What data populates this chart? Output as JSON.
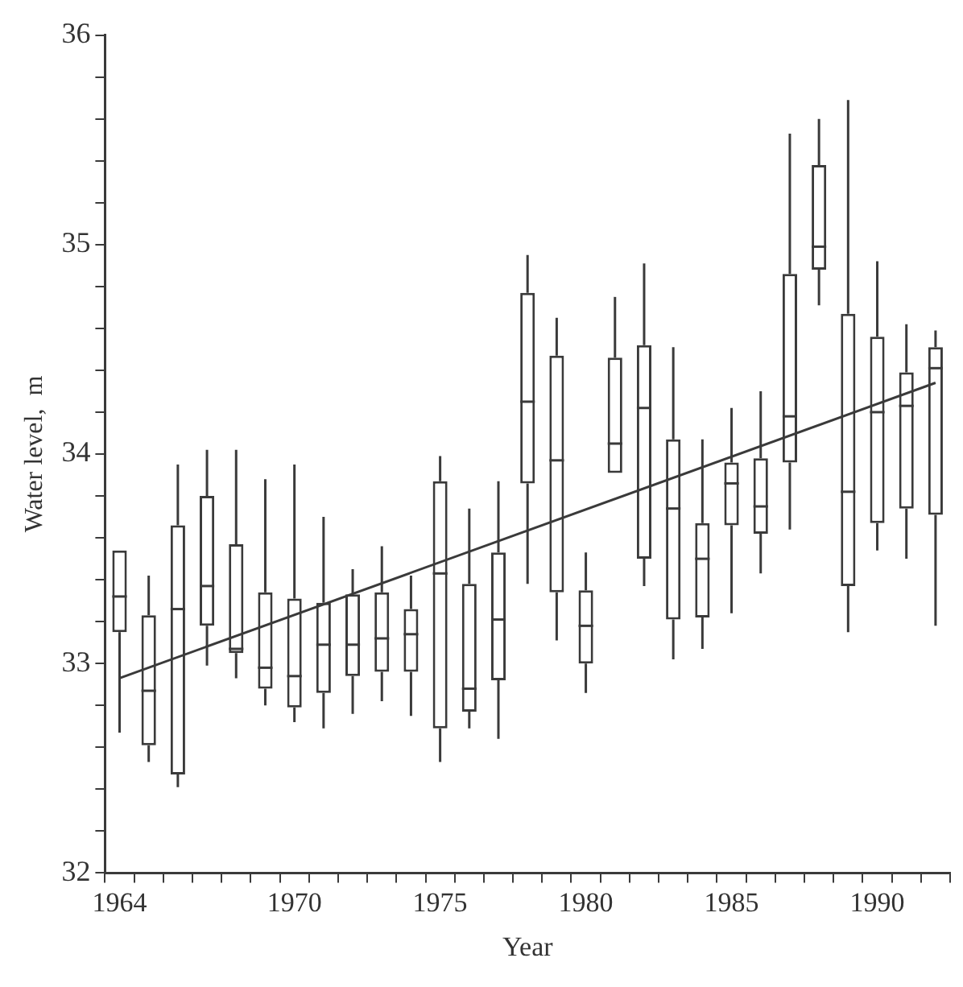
{
  "chart_data": {
    "type": "box",
    "xlabel": "Year",
    "ylabel": "Water level,  m",
    "color": "#3a3a3a",
    "grid": false,
    "legend": false,
    "categories": [
      "1964",
      null,
      null,
      null,
      null,
      null,
      "1970",
      null,
      null,
      null,
      null,
      "1975",
      null,
      null,
      null,
      null,
      "1980",
      null,
      null,
      null,
      null,
      "1985",
      null,
      null,
      null,
      null,
      "1990",
      null,
      null
    ],
    "ylim": [
      32,
      36
    ],
    "yticks": [
      32,
      {
        "value": 32.2,
        "label": null
      },
      {
        "value": 32.4,
        "label": null
      },
      {
        "value": 32.6,
        "label": null
      },
      {
        "value": 32.8,
        "label": null
      },
      33,
      {
        "value": 33.2,
        "label": null
      },
      {
        "value": 33.4,
        "label": null
      },
      {
        "value": 33.6,
        "label": null
      },
      {
        "value": 33.8,
        "label": null
      },
      34,
      {
        "value": 34.2,
        "label": null
      },
      {
        "value": 34.4,
        "label": null
      },
      {
        "value": 34.6,
        "label": null
      },
      {
        "value": 34.8,
        "label": null
      },
      35,
      {
        "value": 35.2,
        "label": null
      },
      {
        "value": 35.4,
        "label": null
      },
      {
        "value": 35.6,
        "label": null
      },
      {
        "value": 35.8,
        "label": null
      },
      36
    ],
    "boxes": [
      {
        "low": 32.67,
        "q1": 33.15,
        "median": 33.32,
        "q3": 33.54,
        "high": 33.54
      },
      {
        "low": 32.53,
        "q1": 32.61,
        "median": 32.87,
        "q3": 33.23,
        "high": 33.42
      },
      {
        "low": 32.41,
        "q1": 32.47,
        "median": 33.26,
        "q3": 33.66,
        "high": 33.95
      },
      {
        "low": 32.99,
        "q1": 33.18,
        "median": 33.37,
        "q3": 33.8,
        "high": 34.02
      },
      {
        "low": 32.93,
        "q1": 33.05,
        "median": 33.07,
        "q3": 33.57,
        "high": 34.02
      },
      {
        "low": 32.8,
        "q1": 32.88,
        "median": 32.98,
        "q3": 33.34,
        "high": 33.88
      },
      {
        "low": 32.72,
        "q1": 32.79,
        "median": 32.94,
        "q3": 33.31,
        "high": 33.95
      },
      {
        "low": 32.69,
        "q1": 32.86,
        "median": 33.09,
        "q3": 33.29,
        "high": 33.7
      },
      {
        "low": 32.76,
        "q1": 32.94,
        "median": 33.09,
        "q3": 33.33,
        "high": 33.45
      },
      {
        "low": 32.82,
        "q1": 32.96,
        "median": 33.12,
        "q3": 33.34,
        "high": 33.56
      },
      {
        "low": 32.75,
        "q1": 32.96,
        "median": 33.14,
        "q3": 33.26,
        "high": 33.42
      },
      {
        "low": 32.53,
        "q1": 32.69,
        "median": 33.43,
        "q3": 33.87,
        "high": 33.99
      },
      {
        "low": 32.69,
        "q1": 32.77,
        "median": 32.88,
        "q3": 33.38,
        "high": 33.74
      },
      {
        "low": 32.64,
        "q1": 32.92,
        "median": 33.21,
        "q3": 33.53,
        "high": 33.87
      },
      {
        "low": 33.38,
        "q1": 33.86,
        "median": 34.25,
        "q3": 34.77,
        "high": 34.95
      },
      {
        "low": 33.11,
        "q1": 33.34,
        "median": 33.97,
        "q3": 34.47,
        "high": 34.65
      },
      {
        "low": 32.86,
        "q1": 33.0,
        "median": 33.18,
        "q3": 33.35,
        "high": 33.53
      },
      {
        "low": 33.91,
        "q1": 33.91,
        "median": 34.05,
        "q3": 34.46,
        "high": 34.75
      },
      {
        "low": 33.37,
        "q1": 33.5,
        "median": 34.22,
        "q3": 34.52,
        "high": 34.91
      },
      {
        "low": 33.02,
        "q1": 33.21,
        "median": 33.74,
        "q3": 34.07,
        "high": 34.51
      },
      {
        "low": 33.07,
        "q1": 33.22,
        "median": 33.5,
        "q3": 33.67,
        "high": 34.07
      },
      {
        "low": 33.24,
        "q1": 33.66,
        "median": 33.86,
        "q3": 33.96,
        "high": 34.22
      },
      {
        "low": 33.43,
        "q1": 33.62,
        "median": 33.75,
        "q3": 33.98,
        "high": 34.3
      },
      {
        "low": 33.64,
        "q1": 33.96,
        "median": 34.18,
        "q3": 34.86,
        "high": 35.53
      },
      {
        "low": 34.71,
        "q1": 34.88,
        "median": 34.99,
        "q3": 35.38,
        "high": 35.6
      },
      {
        "low": 33.15,
        "q1": 33.37,
        "median": 33.82,
        "q3": 34.67,
        "high": 35.69
      },
      {
        "low": 33.54,
        "q1": 33.67,
        "median": 34.2,
        "q3": 34.56,
        "high": 34.92
      },
      {
        "low": 33.5,
        "q1": 33.74,
        "median": 34.23,
        "q3": 34.39,
        "high": 34.62
      },
      {
        "low": 33.18,
        "q1": 33.71,
        "median": 34.41,
        "q3": 34.51,
        "high": 34.59
      }
    ],
    "series": [
      {
        "type": "line",
        "color": "#3a3a3a",
        "values": [
          32.93,
          null,
          null,
          null,
          null,
          null,
          null,
          null,
          null,
          null,
          null,
          null,
          null,
          null,
          null,
          null,
          null,
          null,
          null,
          null,
          null,
          null,
          null,
          null,
          null,
          null,
          null,
          null,
          34.34
        ]
      }
    ]
  }
}
